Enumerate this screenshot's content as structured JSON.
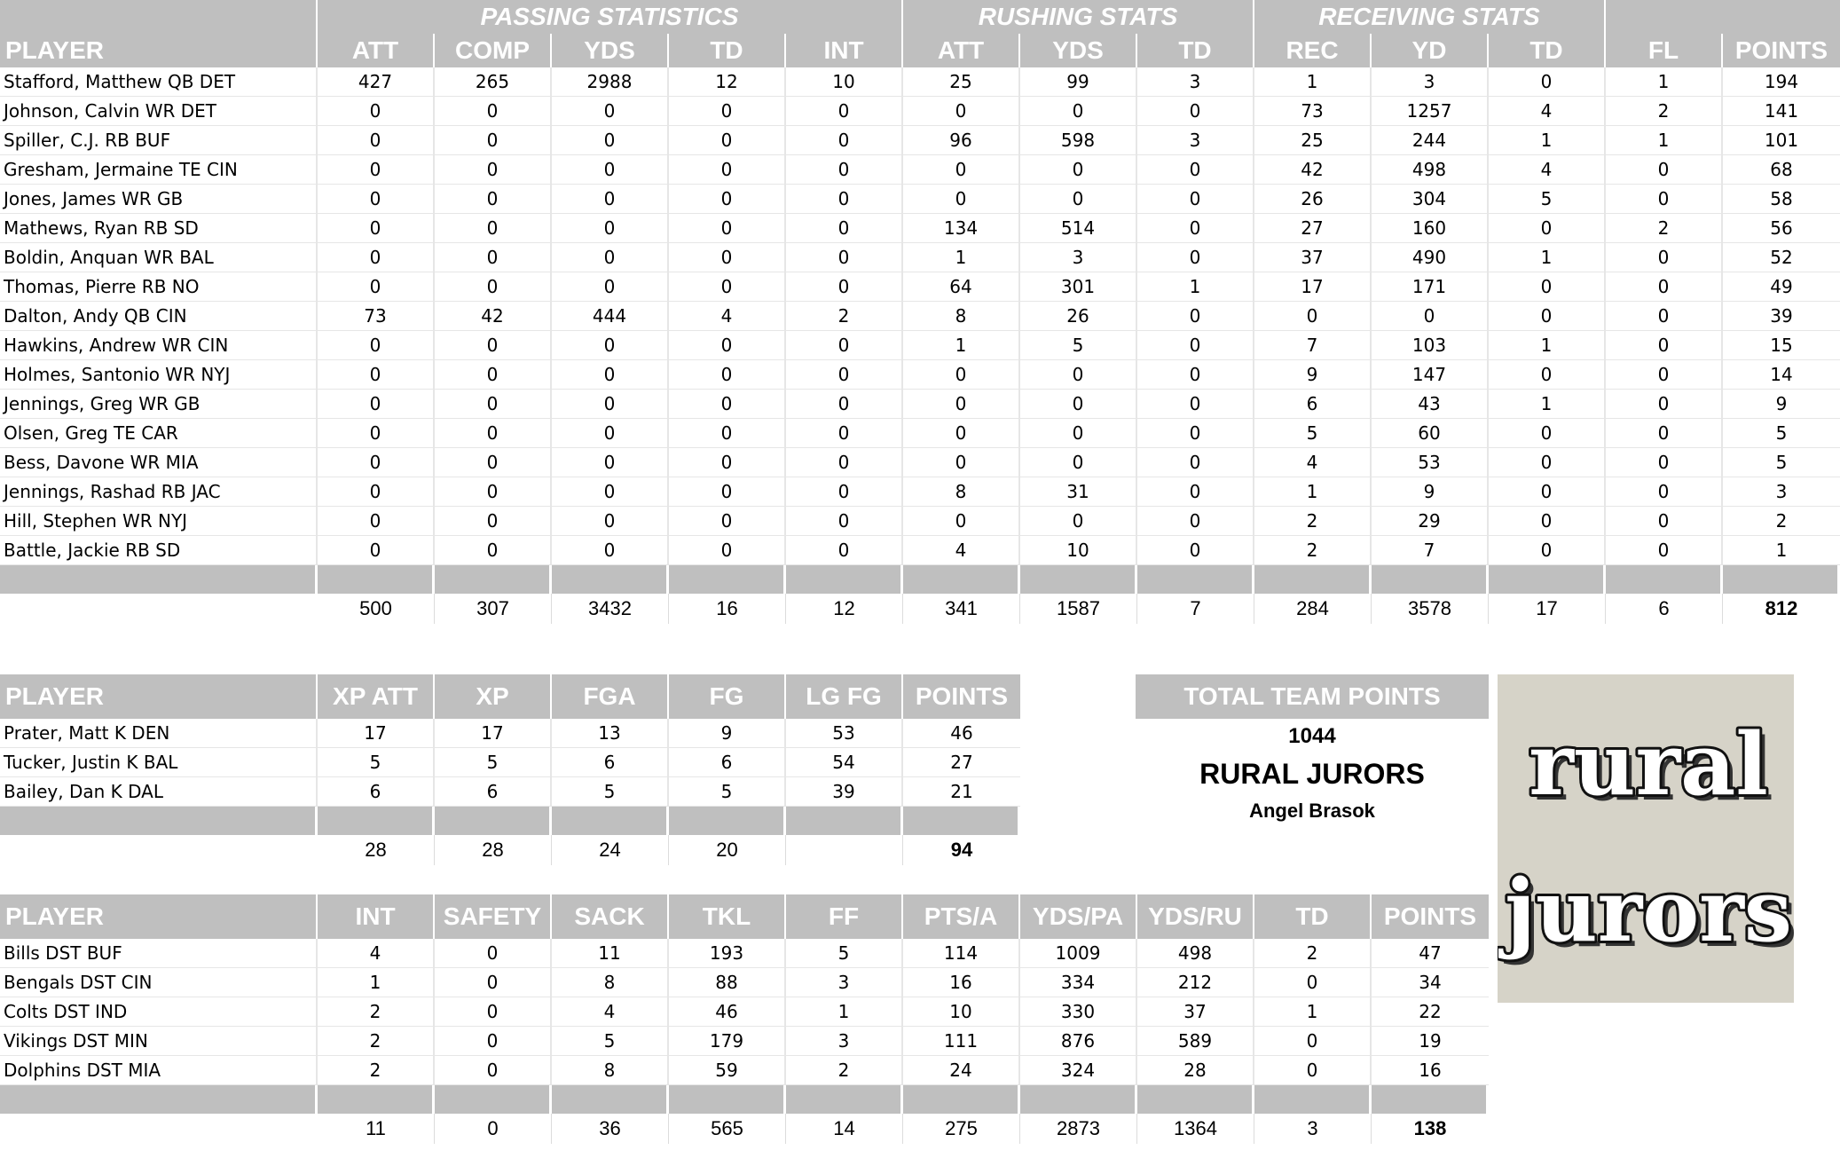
{
  "offense": {
    "groups": [
      {
        "label": "",
        "span": 1,
        "name": true
      },
      {
        "label": "PASSING STATISTICS",
        "span": 5
      },
      {
        "label": "RUSHING STATS",
        "span": 3
      },
      {
        "label": "RECEIVING STATS",
        "span": 3
      },
      {
        "label": "",
        "span": 2
      }
    ],
    "columns": [
      "PLAYER",
      "ATT",
      "COMP",
      "YDS",
      "TD",
      "INT",
      "ATT",
      "YDS",
      "TD",
      "REC",
      "YD",
      "TD",
      "FL",
      "POINTS"
    ],
    "rows": [
      [
        "Stafford, Matthew QB DET",
        "427",
        "265",
        "2988",
        "12",
        "10",
        "25",
        "99",
        "3",
        "1",
        "3",
        "0",
        "1",
        "194"
      ],
      [
        "Johnson, Calvin WR DET",
        "0",
        "0",
        "0",
        "0",
        "0",
        "0",
        "0",
        "0",
        "73",
        "1257",
        "4",
        "2",
        "141"
      ],
      [
        "Spiller, C.J. RB BUF",
        "0",
        "0",
        "0",
        "0",
        "0",
        "96",
        "598",
        "3",
        "25",
        "244",
        "1",
        "1",
        "101"
      ],
      [
        "Gresham, Jermaine TE CIN",
        "0",
        "0",
        "0",
        "0",
        "0",
        "0",
        "0",
        "0",
        "42",
        "498",
        "4",
        "0",
        "68"
      ],
      [
        "Jones, James WR GB",
        "0",
        "0",
        "0",
        "0",
        "0",
        "0",
        "0",
        "0",
        "26",
        "304",
        "5",
        "0",
        "58"
      ],
      [
        "Mathews, Ryan RB SD",
        "0",
        "0",
        "0",
        "0",
        "0",
        "134",
        "514",
        "0",
        "27",
        "160",
        "0",
        "2",
        "56"
      ],
      [
        "Boldin, Anquan WR BAL",
        "0",
        "0",
        "0",
        "0",
        "0",
        "1",
        "3",
        "0",
        "37",
        "490",
        "1",
        "0",
        "52"
      ],
      [
        "Thomas, Pierre RB NO",
        "0",
        "0",
        "0",
        "0",
        "0",
        "64",
        "301",
        "1",
        "17",
        "171",
        "0",
        "0",
        "49"
      ],
      [
        "Dalton, Andy QB CIN",
        "73",
        "42",
        "444",
        "4",
        "2",
        "8",
        "26",
        "0",
        "0",
        "0",
        "0",
        "0",
        "39"
      ],
      [
        "Hawkins, Andrew WR CIN",
        "0",
        "0",
        "0",
        "0",
        "0",
        "1",
        "5",
        "0",
        "7",
        "103",
        "1",
        "0",
        "15"
      ],
      [
        "Holmes, Santonio WR NYJ",
        "0",
        "0",
        "0",
        "0",
        "0",
        "0",
        "0",
        "0",
        "9",
        "147",
        "0",
        "0",
        "14"
      ],
      [
        "Jennings, Greg WR GB",
        "0",
        "0",
        "0",
        "0",
        "0",
        "0",
        "0",
        "0",
        "6",
        "43",
        "1",
        "0",
        "9"
      ],
      [
        "Olsen, Greg TE CAR",
        "0",
        "0",
        "0",
        "0",
        "0",
        "0",
        "0",
        "0",
        "5",
        "60",
        "0",
        "0",
        "5"
      ],
      [
        "Bess, Davone WR MIA",
        "0",
        "0",
        "0",
        "0",
        "0",
        "0",
        "0",
        "0",
        "4",
        "53",
        "0",
        "0",
        "5"
      ],
      [
        "Jennings, Rashad RB JAC",
        "0",
        "0",
        "0",
        "0",
        "0",
        "8",
        "31",
        "0",
        "1",
        "9",
        "0",
        "0",
        "3"
      ],
      [
        "Hill, Stephen WR NYJ",
        "0",
        "0",
        "0",
        "0",
        "0",
        "0",
        "0",
        "0",
        "2",
        "29",
        "0",
        "0",
        "2"
      ],
      [
        "Battle, Jackie RB SD",
        "0",
        "0",
        "0",
        "0",
        "0",
        "4",
        "10",
        "0",
        "2",
        "7",
        "0",
        "0",
        "1"
      ]
    ],
    "totals": [
      "",
      "500",
      "307",
      "3432",
      "16",
      "12",
      "341",
      "1587",
      "7",
      "284",
      "3578",
      "17",
      "6",
      "812"
    ]
  },
  "kickers": {
    "columns": [
      "PLAYER",
      "XP ATT",
      "XP",
      "FGA",
      "FG",
      "LG FG",
      "POINTS"
    ],
    "rows": [
      [
        "Prater, Matt K DEN",
        "17",
        "17",
        "13",
        "9",
        "53",
        "46"
      ],
      [
        "Tucker, Justin K BAL",
        "5",
        "5",
        "6",
        "6",
        "54",
        "27"
      ],
      [
        "Bailey, Dan K DAL",
        "6",
        "6",
        "5",
        "5",
        "39",
        "21"
      ]
    ],
    "totals": [
      "",
      "28",
      "28",
      "24",
      "20",
      "",
      "94"
    ]
  },
  "defense": {
    "columns": [
      "PLAYER",
      "INT",
      "SAFETY",
      "SACK",
      "TKL",
      "FF",
      "PTS/A",
      "YDS/PA",
      "YDS/RU",
      "TD",
      "POINTS"
    ],
    "rows": [
      [
        "Bills DST BUF",
        "4",
        "0",
        "11",
        "193",
        "5",
        "114",
        "1009",
        "498",
        "2",
        "47"
      ],
      [
        "Bengals DST CIN",
        "1",
        "0",
        "8",
        "88",
        "3",
        "16",
        "334",
        "212",
        "0",
        "34"
      ],
      [
        "Colts DST IND",
        "2",
        "0",
        "4",
        "46",
        "1",
        "10",
        "330",
        "37",
        "1",
        "22"
      ],
      [
        "Vikings DST MIN",
        "2",
        "0",
        "5",
        "179",
        "3",
        "111",
        "876",
        "589",
        "0",
        "19"
      ],
      [
        "Dolphins DST MIA",
        "2",
        "0",
        "8",
        "59",
        "2",
        "24",
        "324",
        "28",
        "0",
        "16"
      ]
    ],
    "totals": [
      "",
      "11",
      "0",
      "36",
      "565",
      "14",
      "275",
      "2873",
      "1364",
      "3",
      "138"
    ]
  },
  "summary": {
    "title": "TOTAL TEAM POINTS",
    "points": "1044",
    "team_name": "RURAL JURORS",
    "owner": "Angel Brasok"
  },
  "logo": {
    "line1": "rural",
    "line2": "jurors",
    "colors": {
      "background": "#d6d3c8",
      "text": "#ffffff",
      "outline": "#111111"
    }
  }
}
